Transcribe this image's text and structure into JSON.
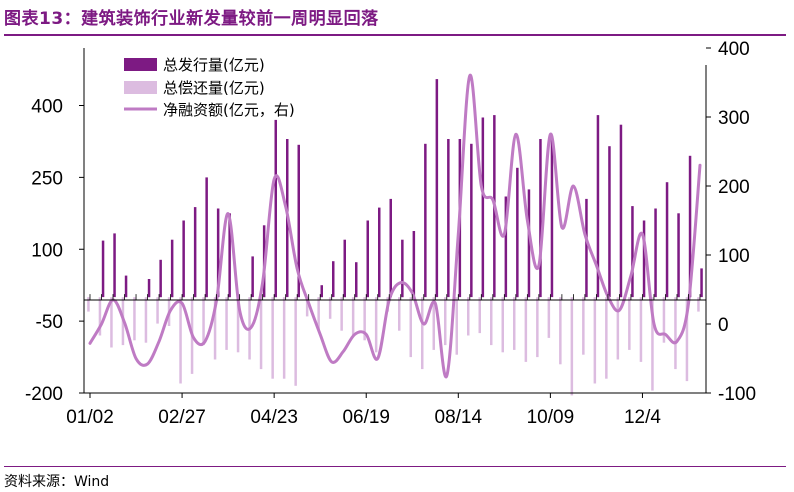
{
  "title": "图表13：建筑装饰行业新发量较前一周明显回落",
  "source": "资料来源：Wind",
  "chart_data": {
    "type": "bar",
    "x_tick_labels": [
      "01/02",
      "02/27",
      "04/23",
      "06/19",
      "08/14",
      "10/09",
      "12/4"
    ],
    "x_tick_weeks": [
      0,
      8,
      16,
      24,
      32,
      40,
      48
    ],
    "left_axis": {
      "ticks": [
        "-200",
        "-50",
        "100",
        "250",
        "400"
      ],
      "ylim": [
        -200,
        520
      ]
    },
    "right_axis": {
      "ticks": [
        "-100",
        "0",
        "100",
        "200",
        "300",
        "400"
      ],
      "ylim": [
        -100,
        400
      ]
    },
    "legend_position": "top-left",
    "series": [
      {
        "name": "总发行量(亿元)",
        "type": "bar",
        "axis": "left",
        "color": "#7d1a83",
        "values": [
          0,
          118,
          133,
          45,
          0,
          38,
          78,
          120,
          160,
          188,
          250,
          185,
          175,
          0,
          85,
          150,
          370,
          330,
          318,
          0,
          25,
          75,
          120,
          73,
          160,
          187,
          205,
          120,
          138,
          320,
          455,
          330,
          330,
          320,
          375,
          380,
          210,
          270,
          225,
          330,
          330,
          0,
          0,
          205,
          380,
          315,
          360,
          190,
          160,
          185,
          240,
          175,
          295,
          60
        ]
      },
      {
        "name": "总偿还量(亿元)",
        "type": "bar",
        "axis": "left",
        "color": "#dcbce0",
        "values": [
          -30,
          -80,
          -105,
          -100,
          -90,
          -95,
          -55,
          -60,
          -180,
          -160,
          -100,
          -130,
          -110,
          -115,
          -130,
          -150,
          -170,
          -170,
          -185,
          -40,
          -70,
          -45,
          -70,
          -80,
          -90,
          -115,
          -30,
          -70,
          -125,
          -150,
          -110,
          -100,
          -120,
          -80,
          -75,
          -100,
          -115,
          -110,
          -135,
          -125,
          -85,
          -140,
          -205,
          -120,
          -180,
          -170,
          -130,
          -110,
          -135,
          -195,
          -95,
          -150,
          -175,
          -30
        ]
      },
      {
        "name": "净融资额(亿元，右)",
        "type": "line",
        "axis": "right",
        "color": "#bf7bc4",
        "values": [
          -28,
          0,
          35,
          2,
          -50,
          -58,
          -25,
          20,
          30,
          -20,
          -25,
          35,
          160,
          20,
          -5,
          60,
          210,
          170,
          80,
          30,
          -15,
          -55,
          -40,
          -15,
          -15,
          -50,
          35,
          60,
          45,
          0,
          30,
          -75,
          130,
          360,
          200,
          180,
          130,
          275,
          150,
          85,
          275,
          140,
          200,
          130,
          85,
          40,
          20,
          70,
          130,
          0,
          -15,
          -25,
          30,
          230
        ]
      }
    ]
  }
}
